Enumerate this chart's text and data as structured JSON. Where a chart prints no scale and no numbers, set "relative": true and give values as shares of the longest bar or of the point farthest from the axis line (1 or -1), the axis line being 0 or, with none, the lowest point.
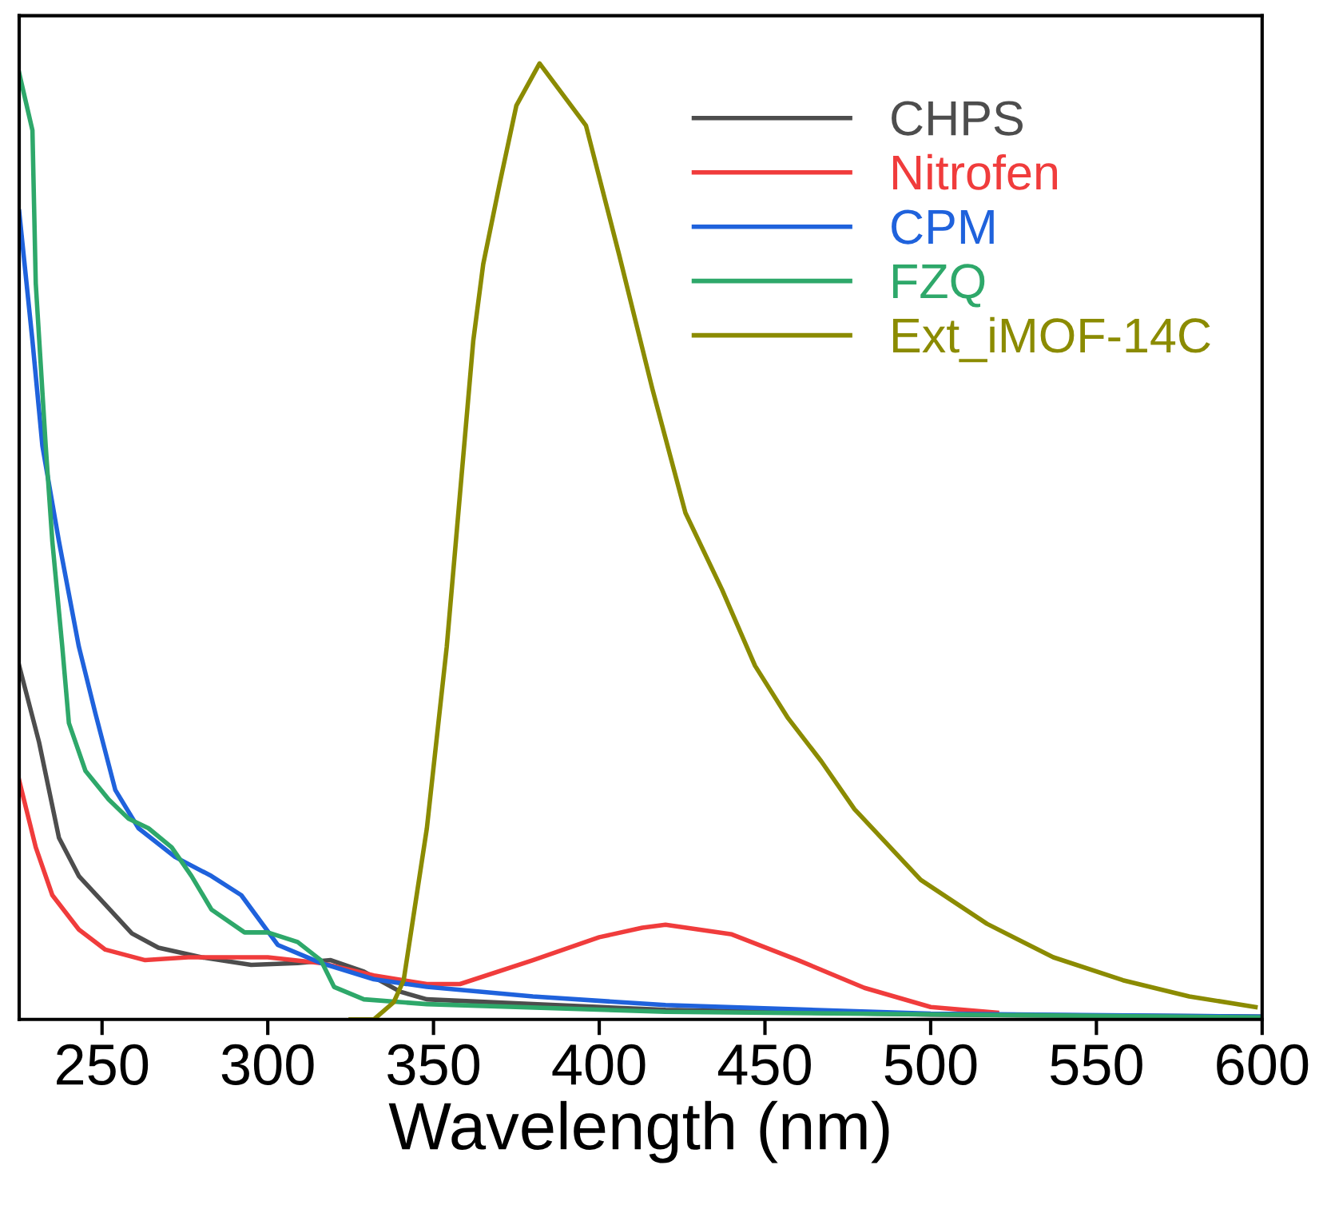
{
  "chart_data": {
    "type": "line",
    "xlabel": "Wavelength (nm)",
    "relative": true,
    "xlim": [
      225,
      600
    ],
    "xticks": [
      250,
      300,
      350,
      400,
      450,
      500,
      550,
      600
    ],
    "grid": false,
    "legend": "top right",
    "line_style": "solid",
    "marker": "none",
    "tick_labels": "x",
    "series": [
      {
        "name": "CHPS",
        "color": "#4d4d4d",
        "x": [
          225,
          231,
          237,
          243,
          251,
          259,
          267,
          280,
          295,
          309,
          319,
          329,
          340,
          348,
          380,
          420,
          500,
          600
        ],
        "values": [
          0.37,
          0.29,
          0.19,
          0.15,
          0.12,
          0.09,
          0.075,
          0.065,
          0.057,
          0.059,
          0.062,
          0.05,
          0.029,
          0.021,
          0.016,
          0.01,
          0.005,
          0.003
        ]
      },
      {
        "name": "Nitrofen",
        "color": "#f03c3c",
        "x": [
          225,
          230,
          235,
          243,
          251,
          263,
          276,
          300,
          316,
          332,
          348,
          358,
          380,
          400,
          413,
          420,
          440,
          460,
          480,
          500,
          520
        ],
        "values": [
          0.25,
          0.18,
          0.13,
          0.094,
          0.073,
          0.062,
          0.065,
          0.065,
          0.059,
          0.046,
          0.037,
          0.037,
          0.062,
          0.086,
          0.096,
          0.099,
          0.089,
          0.062,
          0.033,
          0.013,
          0.007
        ]
      },
      {
        "name": "CPM",
        "color": "#1f62dc",
        "x": [
          225,
          229,
          232,
          237,
          243,
          248,
          254,
          261,
          272,
          283,
          292,
          303,
          316,
          332,
          348,
          380,
          420,
          500,
          600
        ],
        "values": [
          0.845,
          0.71,
          0.6,
          0.5,
          0.39,
          0.32,
          0.24,
          0.2,
          0.17,
          0.15,
          0.13,
          0.078,
          0.059,
          0.042,
          0.034,
          0.024,
          0.015,
          0.006,
          0.003
        ]
      },
      {
        "name": "FZQ",
        "color": "#2ea86a",
        "x": [
          225,
          229,
          230,
          233,
          235,
          238,
          240,
          245,
          252,
          258,
          264,
          271,
          277,
          283,
          293,
          300,
          309,
          316,
          320,
          329,
          348,
          420,
          600
        ],
        "values": [
          0.99,
          0.93,
          0.77,
          0.6,
          0.5,
          0.39,
          0.31,
          0.26,
          0.23,
          0.21,
          0.2,
          0.18,
          0.15,
          0.115,
          0.091,
          0.091,
          0.081,
          0.062,
          0.034,
          0.021,
          0.016,
          0.008,
          0.002
        ]
      },
      {
        "name": "Ext_iMOF-14C",
        "color": "#8b8b00",
        "x": [
          325,
          332,
          338,
          341,
          348,
          354,
          358,
          362,
          365,
          370,
          375,
          382,
          396,
          406,
          416,
          426,
          437,
          447,
          457,
          467,
          477,
          497,
          517,
          537,
          558,
          578,
          598
        ],
        "values": [
          0,
          0,
          0.018,
          0.041,
          0.2,
          0.39,
          0.55,
          0.71,
          0.79,
          0.875,
          0.956,
          1,
          0.935,
          0.8,
          0.66,
          0.53,
          0.45,
          0.37,
          0.315,
          0.27,
          0.22,
          0.146,
          0.1,
          0.065,
          0.041,
          0.024,
          0.013
        ]
      }
    ]
  }
}
